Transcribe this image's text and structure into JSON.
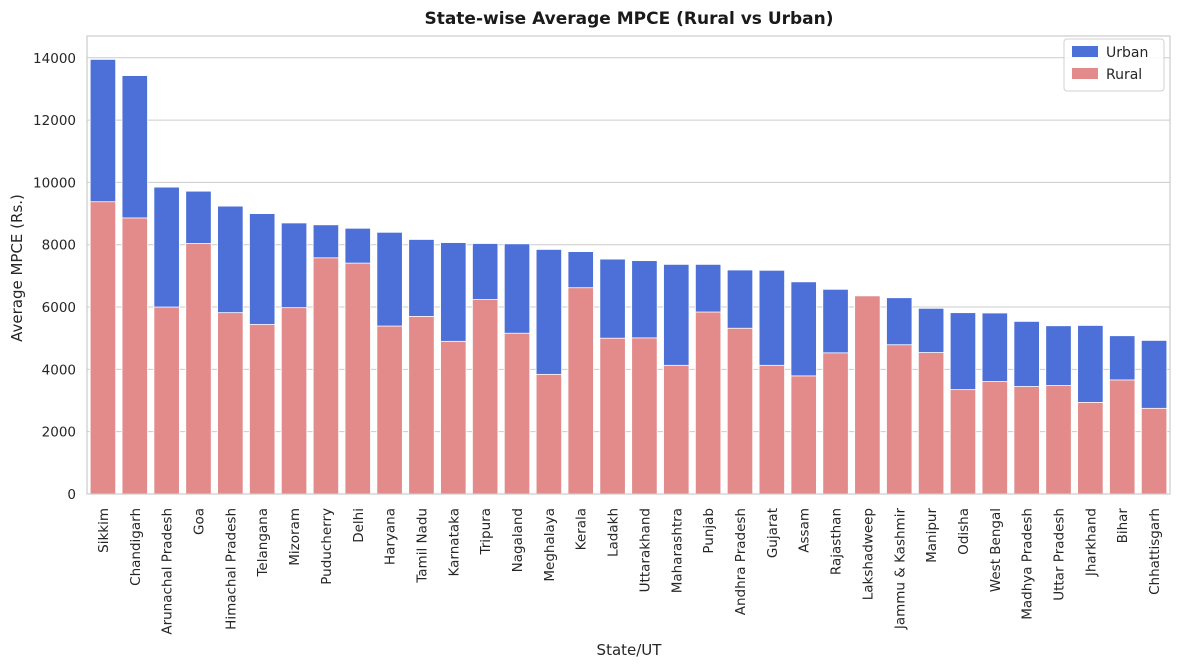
{
  "chart_data": {
    "type": "bar",
    "title": "State-wise Average MPCE (Rural vs Urban)",
    "xlabel": "State/UT",
    "ylabel": "Average MPCE (Rs.)",
    "ylim": [
      0,
      14700
    ],
    "yticks": [
      0,
      2000,
      4000,
      6000,
      8000,
      10000,
      12000,
      14000
    ],
    "grid": true,
    "legend_position": "top-right",
    "bar_mode": "overlay",
    "categories": [
      "Sikkim",
      "Chandigarh",
      "Arunachal Pradesh",
      "Goa",
      "Himachal Pradesh",
      "Telangana",
      "Mizoram",
      "Puducherry",
      "Delhi",
      "Haryana",
      "Tamil Nadu",
      "Karnataka",
      "Tripura",
      "Nagaland",
      "Meghalaya",
      "Kerala",
      "Ladakh",
      "Uttarakhand",
      "Maharashtra",
      "Punjab",
      "Andhra Pradesh",
      "Gujarat",
      "Assam",
      "Rajasthan",
      "Lakshadweep",
      "Jammu & Kashmir",
      "Manipur",
      "Odisha",
      "West Bengal",
      "Madhya Pradesh",
      "Uttar Pradesh",
      "Jharkhand",
      "Bihar",
      "Chhattisgarh"
    ],
    "series": [
      {
        "name": "Urban",
        "color": "#4c6fd8",
        "values": [
          13950,
          13430,
          9850,
          9720,
          9240,
          9000,
          8700,
          8640,
          8530,
          8400,
          8170,
          8070,
          8040,
          8030,
          7850,
          7780,
          7540,
          7490,
          7370,
          7370,
          7190,
          7180,
          6810,
          6570,
          6340,
          6300,
          5960,
          5820,
          5810,
          5540,
          5400,
          5410,
          5080,
          4930
        ]
      },
      {
        "name": "Rural",
        "color": "#e38b8b",
        "values": [
          9380,
          8860,
          6000,
          8040,
          5820,
          5440,
          5980,
          7580,
          7410,
          5390,
          5700,
          4900,
          6240,
          5160,
          3840,
          6620,
          5000,
          5010,
          4130,
          5840,
          5320,
          4130,
          3790,
          4530,
          6360,
          4790,
          4540,
          3350,
          3610,
          3450,
          3480,
          2940,
          3660,
          2750
        ]
      }
    ]
  }
}
